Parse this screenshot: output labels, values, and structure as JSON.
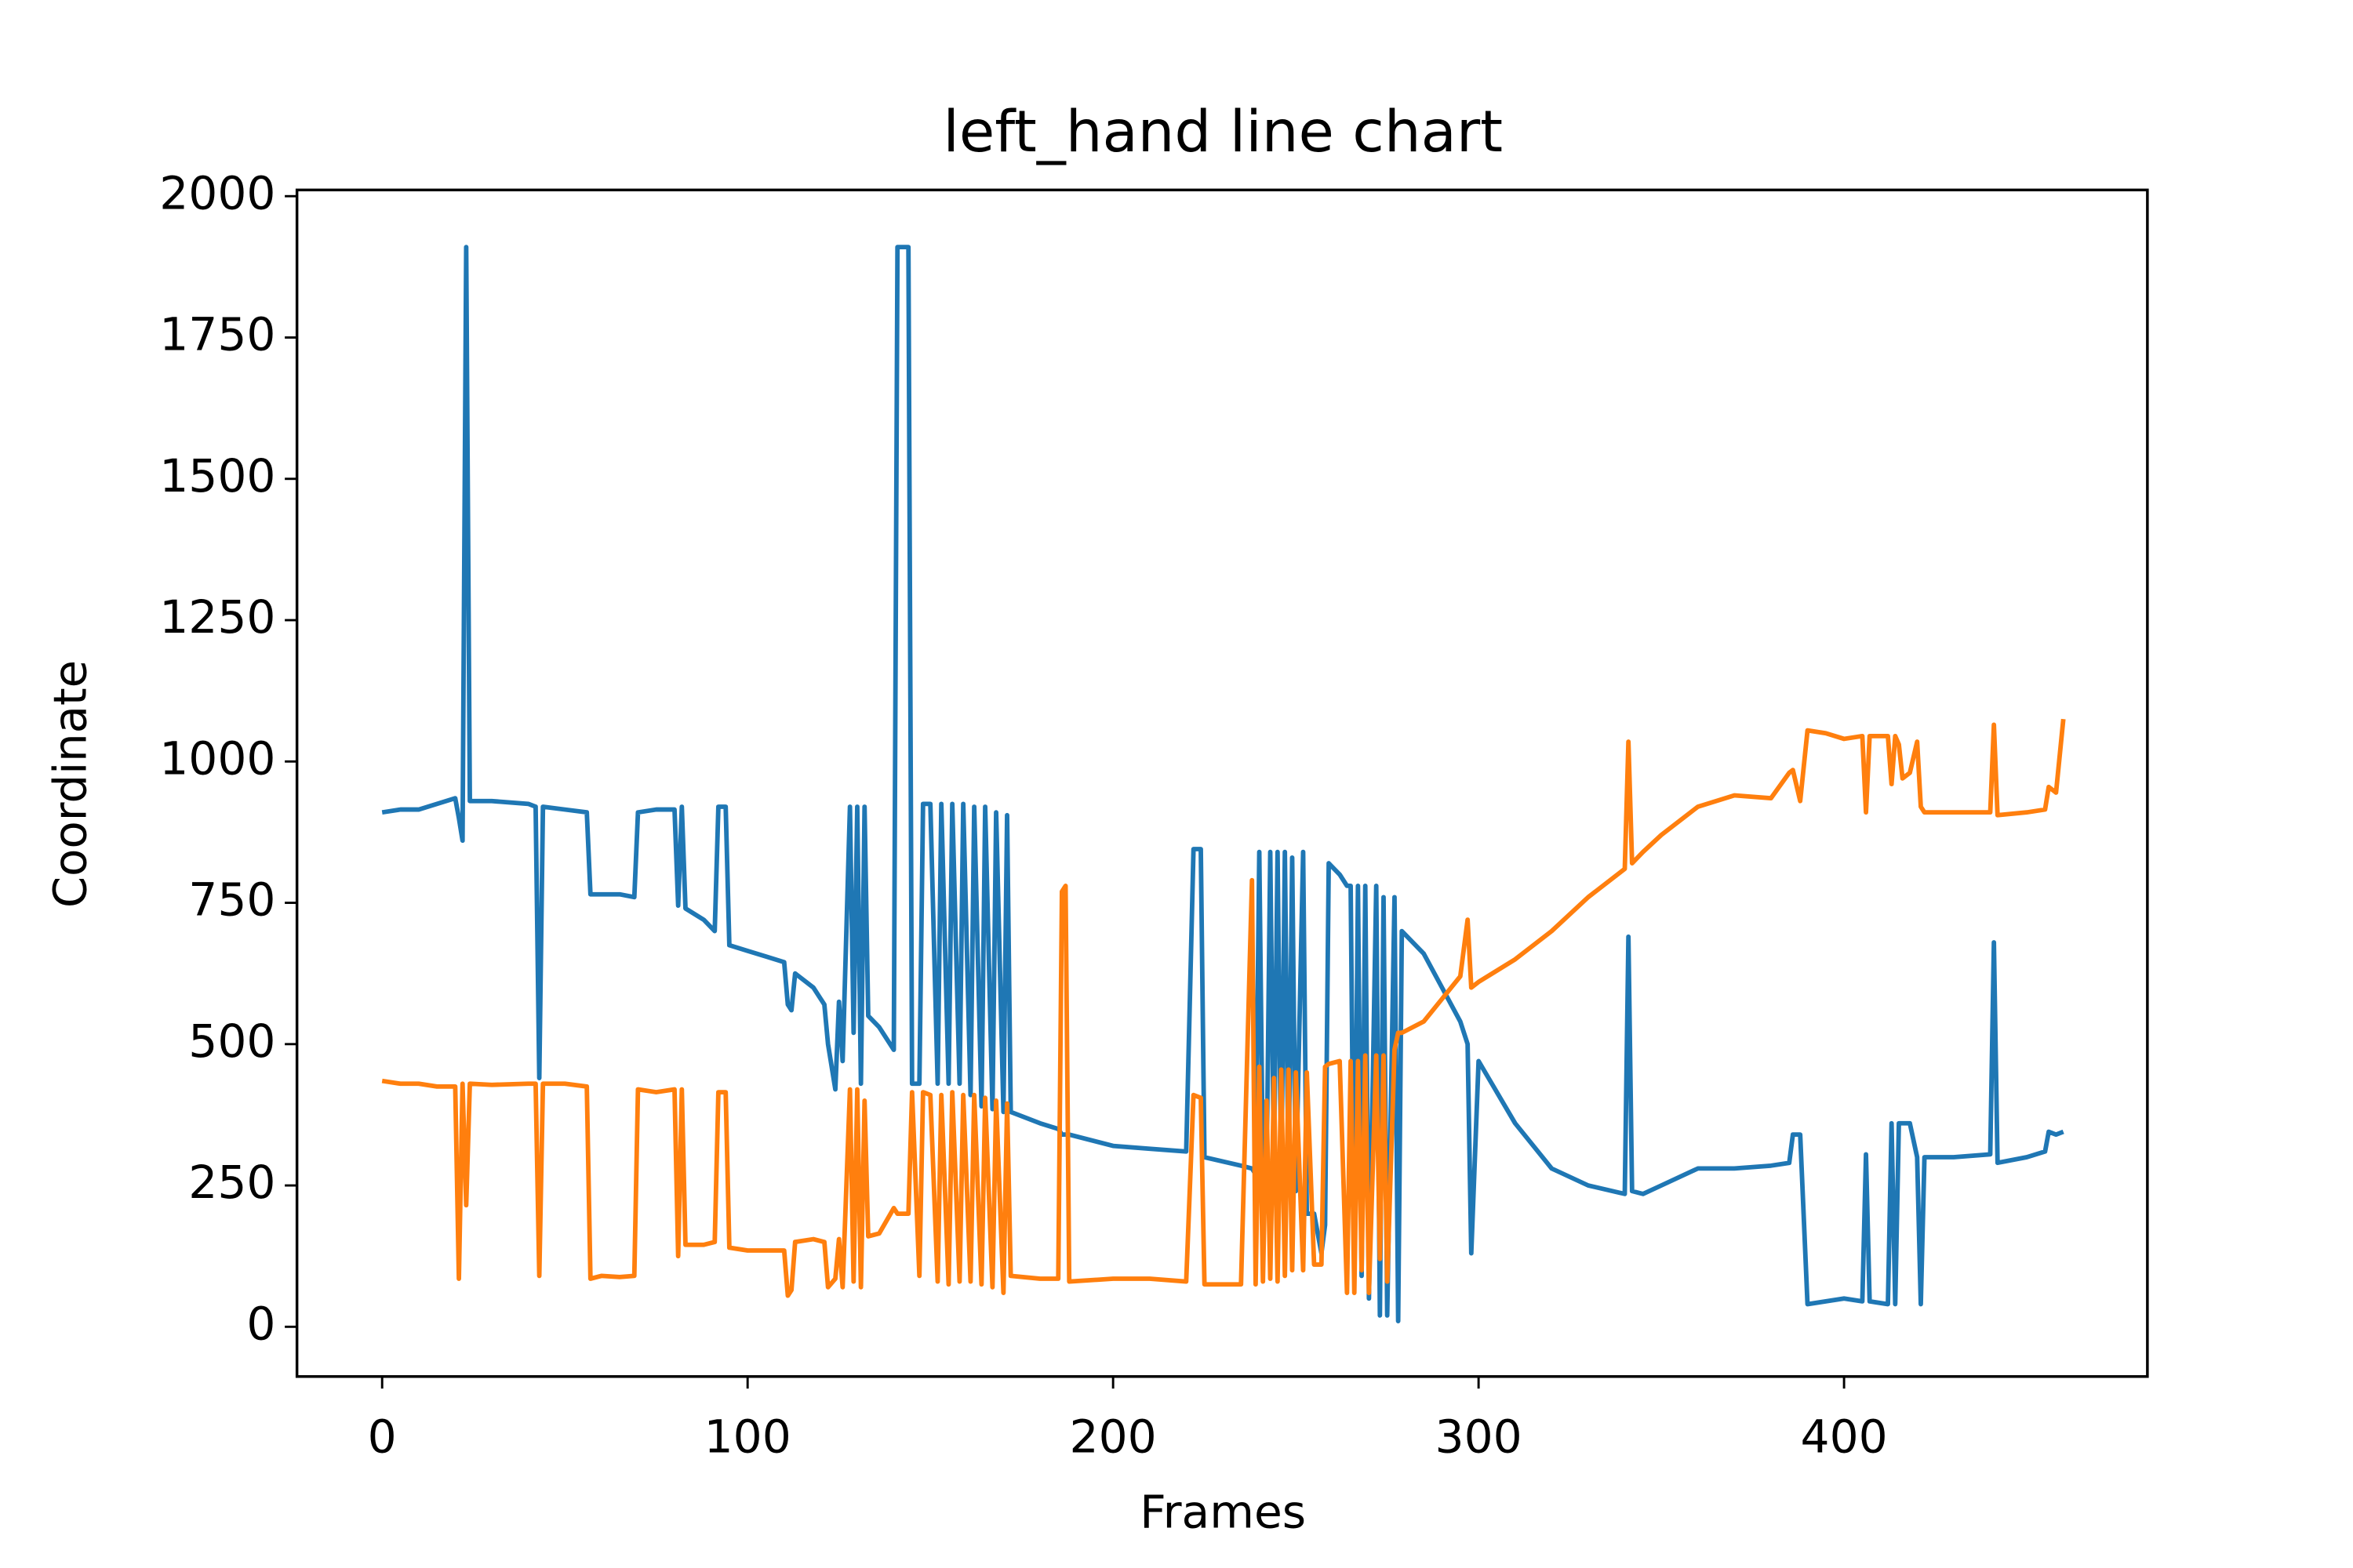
{
  "chart_data": {
    "type": "line",
    "title": "left_hand line chart",
    "x_label": "Frames",
    "y_label": "Coordinate",
    "x": [
      0,
      5,
      10,
      15,
      20,
      21,
      22,
      23,
      24,
      30,
      40,
      42,
      43,
      44,
      50,
      56,
      57,
      60,
      65,
      69,
      70,
      75,
      80,
      81,
      82,
      83,
      88,
      91,
      92,
      94,
      95,
      100,
      105,
      110,
      111,
      112,
      113,
      118,
      121,
      122,
      124,
      125,
      126,
      128,
      129,
      130,
      131,
      132,
      133,
      136,
      140,
      141,
      144,
      145,
      147,
      148,
      150,
      152,
      153,
      155,
      156,
      158,
      159,
      161,
      162,
      164,
      165,
      167,
      168,
      170,
      171,
      172,
      180,
      185,
      186,
      187,
      188,
      200,
      210,
      220,
      222,
      224,
      225,
      235,
      238,
      239,
      240,
      241,
      242,
      243,
      244,
      245,
      246,
      247,
      248,
      249,
      250,
      252,
      253,
      255,
      257,
      258,
      259,
      262,
      264,
      265,
      266,
      267,
      268,
      269,
      270,
      272,
      273,
      274,
      275,
      277,
      278,
      279,
      285,
      290,
      295,
      297,
      298,
      300,
      310,
      320,
      330,
      340,
      341,
      342,
      345,
      350,
      360,
      370,
      380,
      385,
      386,
      388,
      390,
      395,
      400,
      405,
      406,
      407,
      412,
      413,
      414,
      415,
      416,
      418,
      420,
      421,
      422,
      430,
      440,
      441,
      442,
      450,
      455,
      456,
      458,
      460
    ],
    "series": [
      {
        "color": "#1f77b4",
        "values": [
          910,
          915,
          915,
          925,
          935,
          900,
          860,
          1910,
          930,
          930,
          925,
          920,
          440,
          920,
          915,
          910,
          765,
          765,
          765,
          760,
          910,
          915,
          915,
          745,
          920,
          740,
          720,
          700,
          920,
          920,
          675,
          665,
          655,
          645,
          570,
          560,
          625,
          600,
          570,
          500,
          420,
          575,
          470,
          920,
          520,
          920,
          430,
          920,
          550,
          530,
          490,
          1910,
          1910,
          430,
          430,
          925,
          925,
          430,
          925,
          430,
          925,
          430,
          925,
          410,
          920,
          390,
          920,
          385,
          910,
          380,
          905,
          380,
          360,
          350,
          340,
          340,
          340,
          320,
          315,
          310,
          845,
          845,
          300,
          285,
          280,
          270,
          840,
          270,
          270,
          840,
          280,
          840,
          250,
          840,
          250,
          830,
          240,
          840,
          200,
          200,
          130,
          180,
          820,
          800,
          780,
          780,
          100,
          780,
          90,
          780,
          50,
          780,
          20,
          760,
          20,
          760,
          10,
          700,
          660,
          600,
          540,
          500,
          130,
          470,
          360,
          280,
          250,
          235,
          690,
          240,
          235,
          250,
          280,
          280,
          285,
          290,
          340,
          340,
          40,
          45,
          50,
          45,
          305,
          45,
          40,
          360,
          40,
          360,
          360,
          360,
          300,
          40,
          300,
          300,
          305,
          680,
          290,
          300,
          310,
          345,
          340,
          345
        ]
      },
      {
        "color": "#ff7f0e",
        "values": [
          435,
          430,
          430,
          425,
          425,
          85,
          430,
          215,
          430,
          428,
          430,
          430,
          90,
          430,
          430,
          425,
          85,
          90,
          88,
          90,
          420,
          415,
          420,
          125,
          420,
          145,
          145,
          150,
          415,
          415,
          140,
          135,
          135,
          135,
          55,
          65,
          150,
          155,
          150,
          70,
          85,
          155,
          70,
          420,
          80,
          420,
          70,
          400,
          160,
          165,
          210,
          200,
          200,
          415,
          90,
          415,
          410,
          80,
          410,
          75,
          415,
          80,
          410,
          80,
          410,
          75,
          405,
          70,
          400,
          60,
          395,
          90,
          85,
          85,
          770,
          780,
          80,
          85,
          85,
          80,
          410,
          405,
          75,
          75,
          790,
          75,
          460,
          80,
          400,
          85,
          440,
          80,
          455,
          90,
          455,
          100,
          450,
          100,
          450,
          110,
          110,
          460,
          465,
          470,
          60,
          470,
          60,
          470,
          100,
          480,
          60,
          480,
          120,
          480,
          80,
          490,
          520,
          520,
          540,
          580,
          620,
          720,
          600,
          610,
          650,
          700,
          760,
          810,
          1035,
          820,
          840,
          870,
          920,
          940,
          935,
          980,
          985,
          930,
          1055,
          1050,
          1040,
          1045,
          910,
          1045,
          1045,
          960,
          1045,
          1030,
          970,
          980,
          1035,
          920,
          910,
          910,
          910,
          1065,
          905,
          910,
          915,
          955,
          945,
          1075
        ]
      }
    ],
    "xlim": [
      -23.3,
      483
    ],
    "ylim": [
      -88,
      2011
    ],
    "xticks": [
      0,
      100,
      200,
      300,
      400
    ],
    "yticks": [
      0,
      250,
      500,
      750,
      1000,
      1250,
      1500,
      1750,
      2000
    ]
  }
}
